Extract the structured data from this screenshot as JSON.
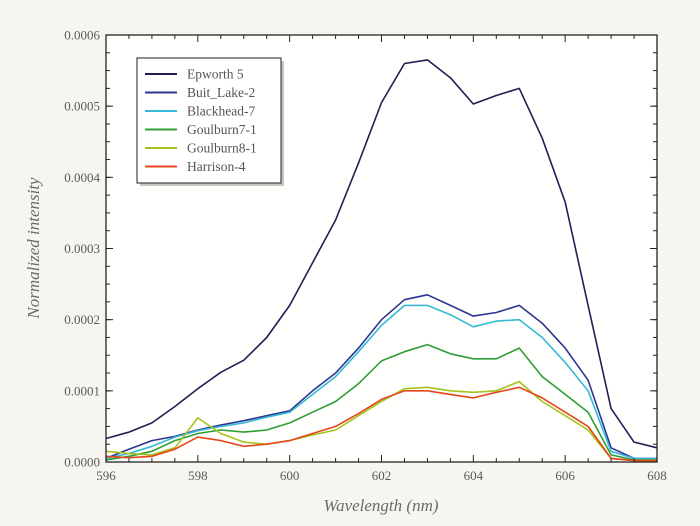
{
  "chart_data": {
    "type": "line",
    "xlabel": "Wavelength (nm)",
    "ylabel": "Normalized intensity",
    "xlim": [
      596,
      608
    ],
    "ylim": [
      0,
      0.0006
    ],
    "x_ticks": [
      596,
      598,
      600,
      602,
      604,
      606,
      608
    ],
    "x_tick_labels": [
      "596",
      "598",
      "600",
      "602",
      "604",
      "606",
      "608"
    ],
    "y_ticks": [
      0,
      0.0001,
      0.0002,
      0.0003,
      0.0004,
      0.0005,
      0.0006
    ],
    "y_tick_labels": [
      "0.0000",
      "0.0001",
      "0.0002",
      "0.0003",
      "0.0004",
      "0.0005",
      "0.0006"
    ],
    "grid": false,
    "legend_position": "top-left",
    "x": [
      596.0,
      596.5,
      597.0,
      597.5,
      598.0,
      598.5,
      599.0,
      599.5,
      600.0,
      600.5,
      601.0,
      601.5,
      602.0,
      602.5,
      603.0,
      603.5,
      604.0,
      604.5,
      605.0,
      605.5,
      606.0,
      606.5,
      607.0,
      607.5,
      608.0
    ],
    "series": [
      {
        "name": "Epworth 5",
        "color": "#2a1a55",
        "values": [
          3.3e-05,
          4.2e-05,
          5.5e-05,
          7.8e-05,
          0.000103,
          0.000126,
          0.000143,
          0.000175,
          0.00022,
          0.00028,
          0.00034,
          0.00042,
          0.000505,
          0.00056,
          0.000565,
          0.00054,
          0.000503,
          0.000515,
          0.000525,
          0.000455,
          0.000365,
          0.00022,
          7.5e-05,
          2.8e-05,
          2e-05
        ]
      },
      {
        "name": "Buit_Lake-2",
        "color": "#2d3591",
        "values": [
          5e-06,
          1.8e-05,
          3e-05,
          3.6e-05,
          4.5e-05,
          5.2e-05,
          5.8e-05,
          6.5e-05,
          7.2e-05,
          0.0001,
          0.000125,
          0.00016,
          0.0002,
          0.000228,
          0.000235,
          0.00022,
          0.000205,
          0.00021,
          0.00022,
          0.000195,
          0.00016,
          0.000115,
          2e-05,
          5e-06,
          5e-06
        ]
      },
      {
        "name": "Blackhead-7",
        "color": "#36b9d6",
        "values": [
          5e-06,
          1.2e-05,
          2.2e-05,
          3.5e-05,
          4.4e-05,
          5e-05,
          5.5e-05,
          6.3e-05,
          7e-05,
          9.5e-05,
          0.00012,
          0.000155,
          0.000192,
          0.00022,
          0.00022,
          0.000207,
          0.00019,
          0.000198,
          0.0002,
          0.000175,
          0.00014,
          0.0001,
          1.5e-05,
          5e-06,
          5e-06
        ]
      },
      {
        "name": "Goulburn7-1",
        "color": "#2e9e35",
        "values": [
          3e-06,
          8e-06,
          1.5e-05,
          3e-05,
          4e-05,
          4.5e-05,
          4.2e-05,
          4.5e-05,
          5.5e-05,
          7e-05,
          8.5e-05,
          0.00011,
          0.000142,
          0.000155,
          0.000165,
          0.000152,
          0.000145,
          0.000145,
          0.00016,
          0.00012,
          9.5e-05,
          7e-05,
          1e-05,
          3e-06,
          3e-06
        ]
      },
      {
        "name": "Goulburn8-1",
        "color": "#a5c41a",
        "values": [
          1.5e-05,
          1.2e-05,
          1e-05,
          2e-05,
          6.2e-05,
          4e-05,
          2.8e-05,
          2.5e-05,
          3e-05,
          3.8e-05,
          4.5e-05,
          6.5e-05,
          8.5e-05,
          0.000103,
          0.000105,
          0.0001,
          9.8e-05,
          0.0001,
          0.000113,
          8.5e-05,
          6.5e-05,
          4.5e-05,
          5e-06,
          2e-06,
          2e-06
        ]
      },
      {
        "name": "Harrison-4",
        "color": "#e4471c",
        "values": [
          8e-06,
          6e-06,
          8e-06,
          1.8e-05,
          3.5e-05,
          3e-05,
          2.2e-05,
          2.5e-05,
          3e-05,
          4e-05,
          5e-05,
          6.8e-05,
          8.8e-05,
          0.0001,
          0.0001,
          9.5e-05,
          9e-05,
          9.8e-05,
          0.000105,
          9e-05,
          7e-05,
          5e-05,
          5e-06,
          2e-06,
          2e-06
        ]
      }
    ]
  }
}
